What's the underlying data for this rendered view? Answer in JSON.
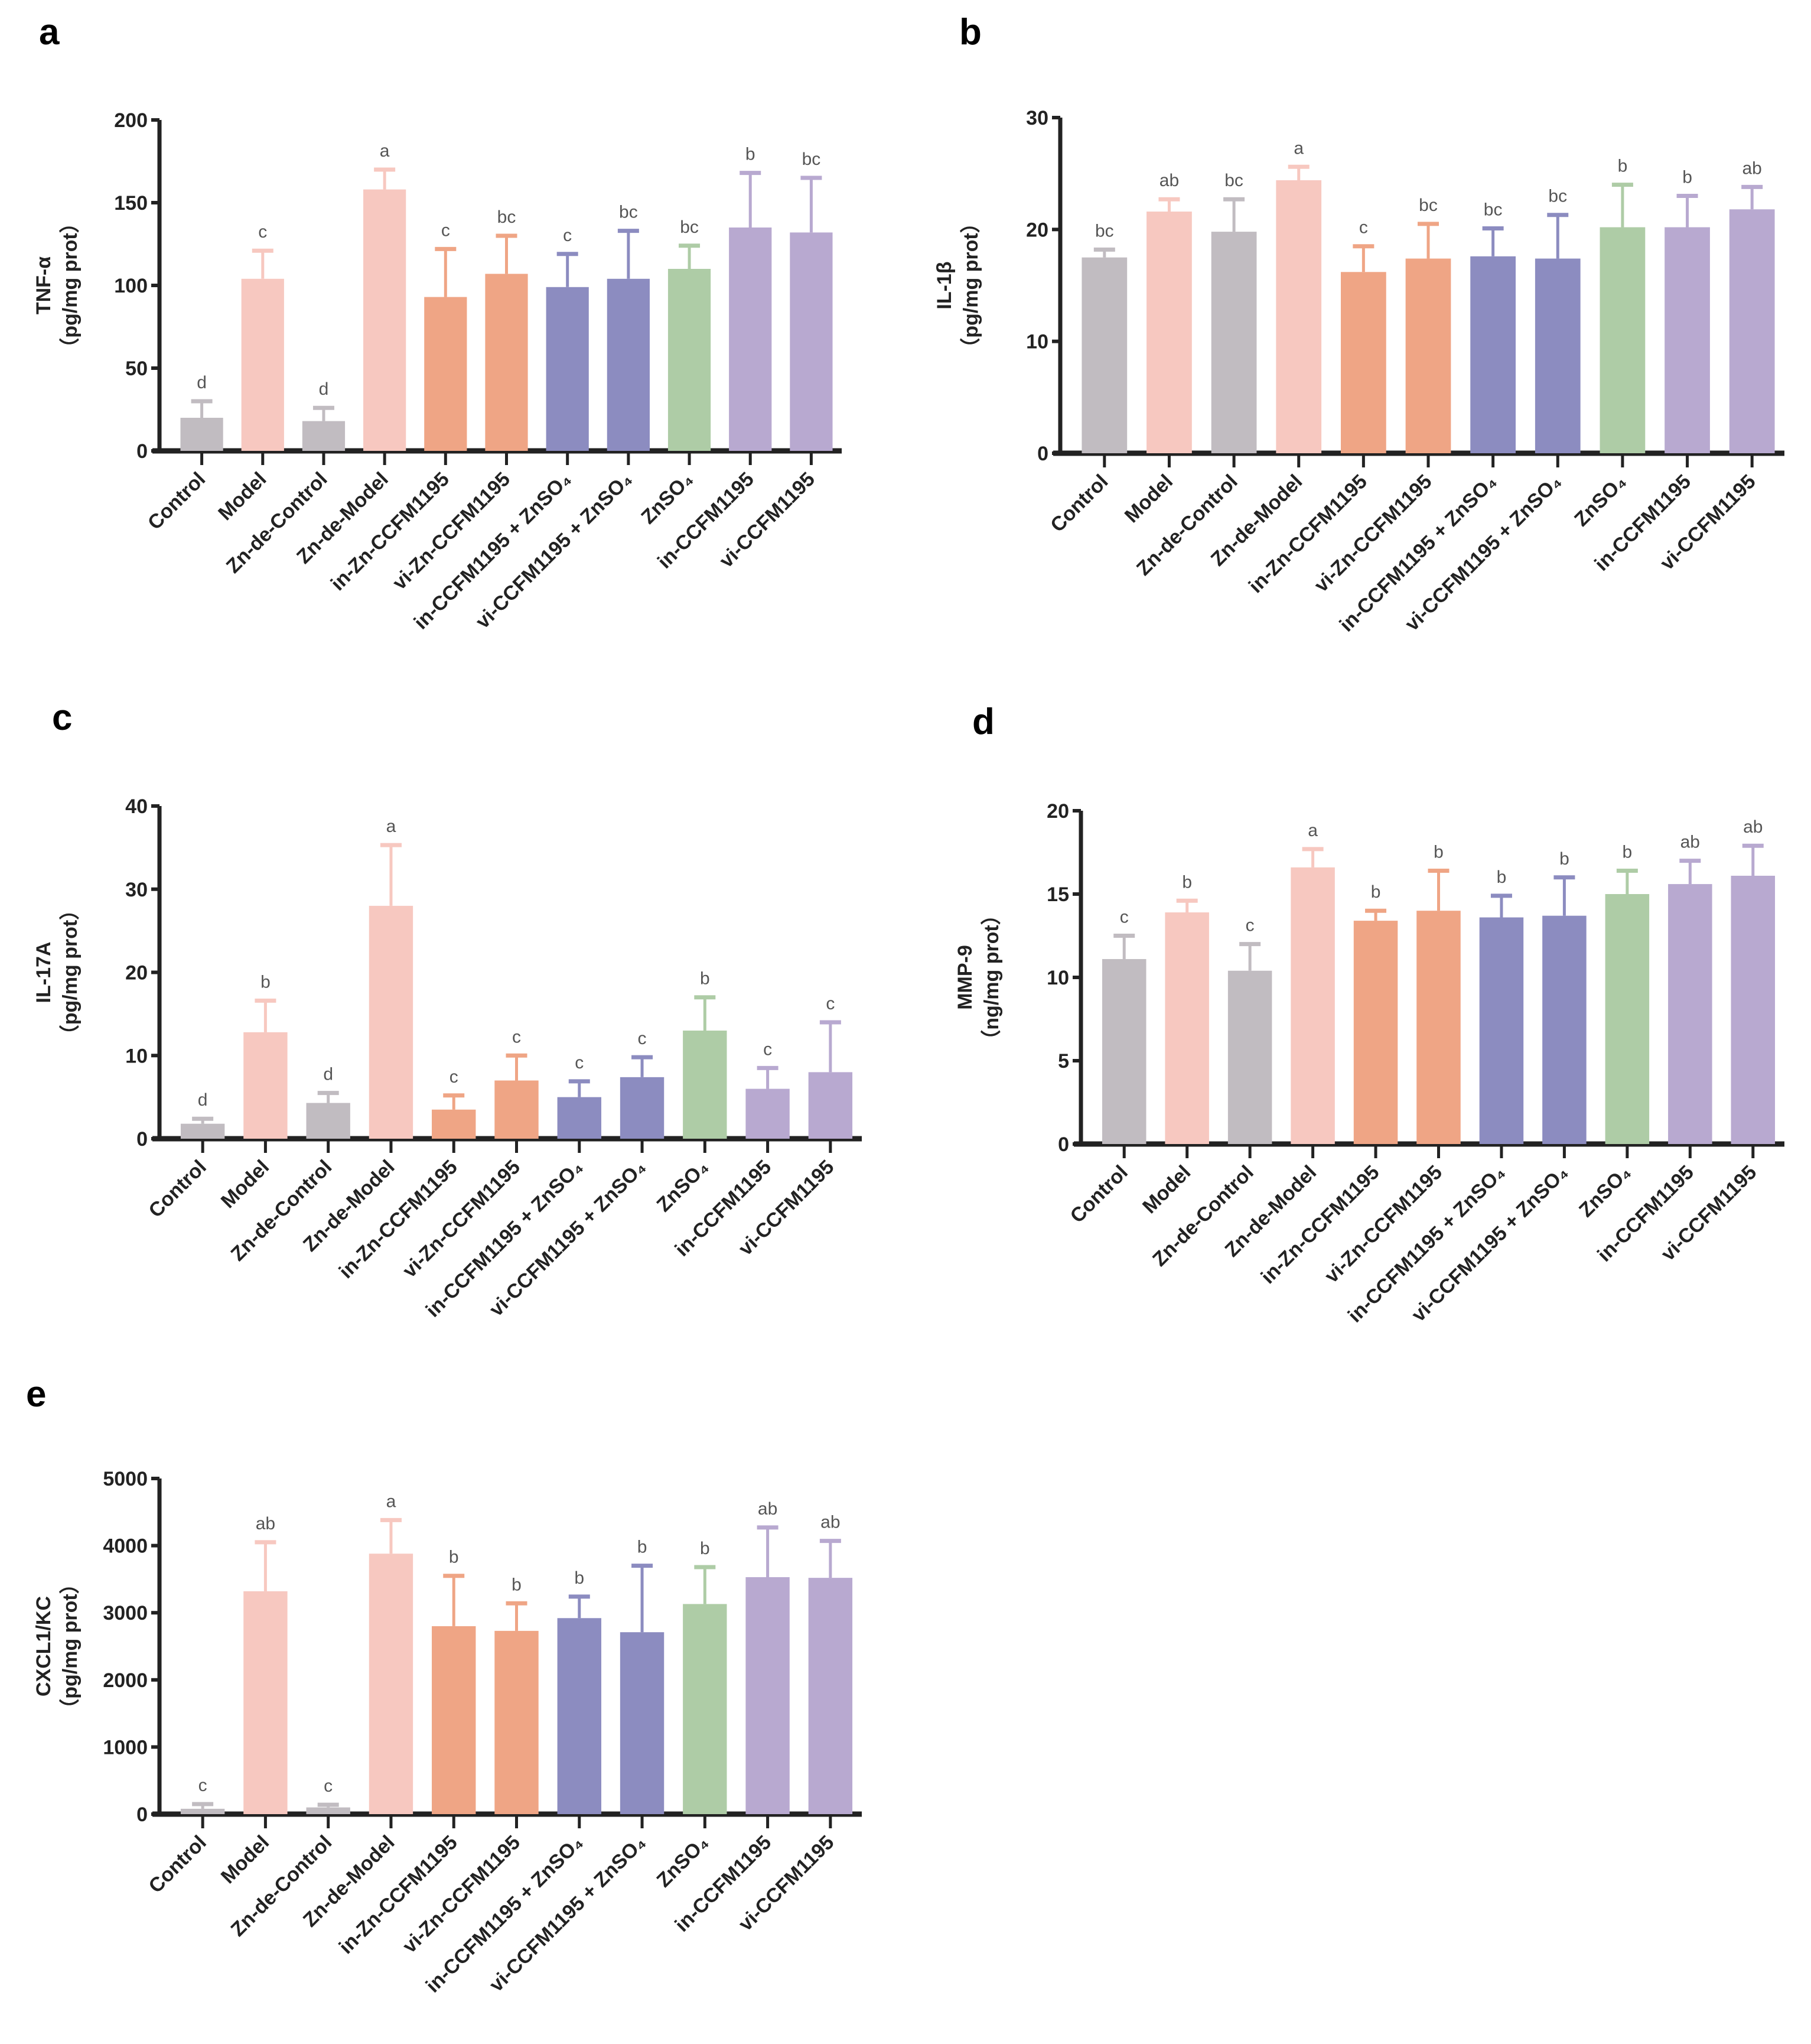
{
  "categories": [
    "Control",
    "Model",
    "Zn-de-Control",
    "Zn-de-Model",
    "in-Zn-CCFM1195",
    "vi-Zn-CCFM1195",
    "in-CCFM1195 + ZnSO₄",
    "vi-CCFM1195 + ZnSO₄",
    "ZnSO₄",
    "in-CCFM1195",
    "vi-CCFM1195"
  ],
  "colors": [
    "#c1bcc1",
    "#f7c8c0",
    "#c1bcc1",
    "#f7c8c0",
    "#efa585",
    "#efa585",
    "#8c8cc0",
    "#8c8cc0",
    "#aecca6",
    "#b8a9d0",
    "#b8a9d0"
  ],
  "chart_data": [
    {
      "panel": "a",
      "type": "bar",
      "title": "",
      "ylabel": "TNF-α",
      "ylabel_unit": "（pg/mg prot）",
      "ylim": [
        0,
        200
      ],
      "yticks": [
        0,
        50,
        100,
        150,
        200
      ],
      "values": [
        20,
        104,
        18,
        158,
        93,
        107,
        99,
        104,
        110,
        135,
        132
      ],
      "error_upper": [
        30,
        121,
        26,
        170,
        122,
        130,
        119,
        133,
        124,
        168,
        165
      ],
      "letters": [
        "d",
        "c",
        "d",
        "a",
        "c",
        "bc",
        "c",
        "bc",
        "bc",
        "b",
        "bc"
      ]
    },
    {
      "panel": "b",
      "type": "bar",
      "title": "",
      "ylabel": "IL-1β",
      "ylabel_unit": "（pg/mg prot）",
      "ylim": [
        0,
        30
      ],
      "yticks": [
        0,
        10,
        20,
        30
      ],
      "values": [
        17.5,
        21.6,
        19.8,
        24.4,
        16.2,
        17.4,
        17.6,
        17.4,
        20.2,
        20.2,
        21.8
      ],
      "error_upper": [
        18.2,
        22.7,
        22.7,
        25.6,
        18.5,
        20.5,
        20.1,
        21.3,
        24.0,
        23.0,
        23.8
      ],
      "letters": [
        "bc",
        "ab",
        "bc",
        "a",
        "c",
        "bc",
        "bc",
        "bc",
        "b",
        "b",
        "ab"
      ]
    },
    {
      "panel": "c",
      "type": "bar",
      "title": "",
      "ylabel": "IL-17A",
      "ylabel_unit": "（pg/mg prot）",
      "ylim": [
        0,
        40
      ],
      "yticks": [
        0,
        10,
        20,
        30,
        40
      ],
      "values": [
        1.8,
        12.8,
        4.3,
        28.0,
        3.5,
        7.0,
        5.0,
        7.4,
        13.0,
        6.0,
        8.0
      ],
      "error_upper": [
        2.4,
        16.6,
        5.5,
        35.3,
        5.2,
        10.0,
        6.9,
        9.8,
        17.0,
        8.5,
        14.0
      ],
      "letters": [
        "d",
        "b",
        "d",
        "a",
        "c",
        "c",
        "c",
        "c",
        "b",
        "c",
        "c"
      ]
    },
    {
      "panel": "d",
      "type": "bar",
      "title": "",
      "ylabel": "MMP-9",
      "ylabel_unit": "（ng/mg prot）",
      "ylim": [
        0,
        20
      ],
      "yticks": [
        0,
        5,
        10,
        15,
        20
      ],
      "values": [
        11.1,
        13.9,
        10.4,
        16.6,
        13.4,
        14.0,
        13.6,
        13.7,
        15.0,
        15.6,
        16.1
      ],
      "error_upper": [
        12.5,
        14.6,
        12.0,
        17.7,
        14.0,
        16.4,
        14.9,
        16.0,
        16.4,
        17.0,
        17.9
      ],
      "letters": [
        "c",
        "b",
        "c",
        "a",
        "b",
        "b",
        "b",
        "b",
        "b",
        "ab",
        "ab"
      ]
    },
    {
      "panel": "e",
      "type": "bar",
      "title": "",
      "ylabel": "CXCL1/KC",
      "ylabel_unit": "（pg/mg prot）",
      "ylim": [
        0,
        5000
      ],
      "yticks": [
        0,
        1000,
        2000,
        3000,
        4000,
        5000
      ],
      "values": [
        80,
        3320,
        100,
        3880,
        2800,
        2730,
        2920,
        2710,
        3130,
        3530,
        3520
      ],
      "error_upper": [
        150,
        4050,
        140,
        4380,
        3550,
        3140,
        3240,
        3700,
        3680,
        4270,
        4070
      ],
      "letters": [
        "c",
        "ab",
        "c",
        "a",
        "b",
        "b",
        "b",
        "b",
        "b",
        "ab",
        "ab"
      ]
    }
  ]
}
